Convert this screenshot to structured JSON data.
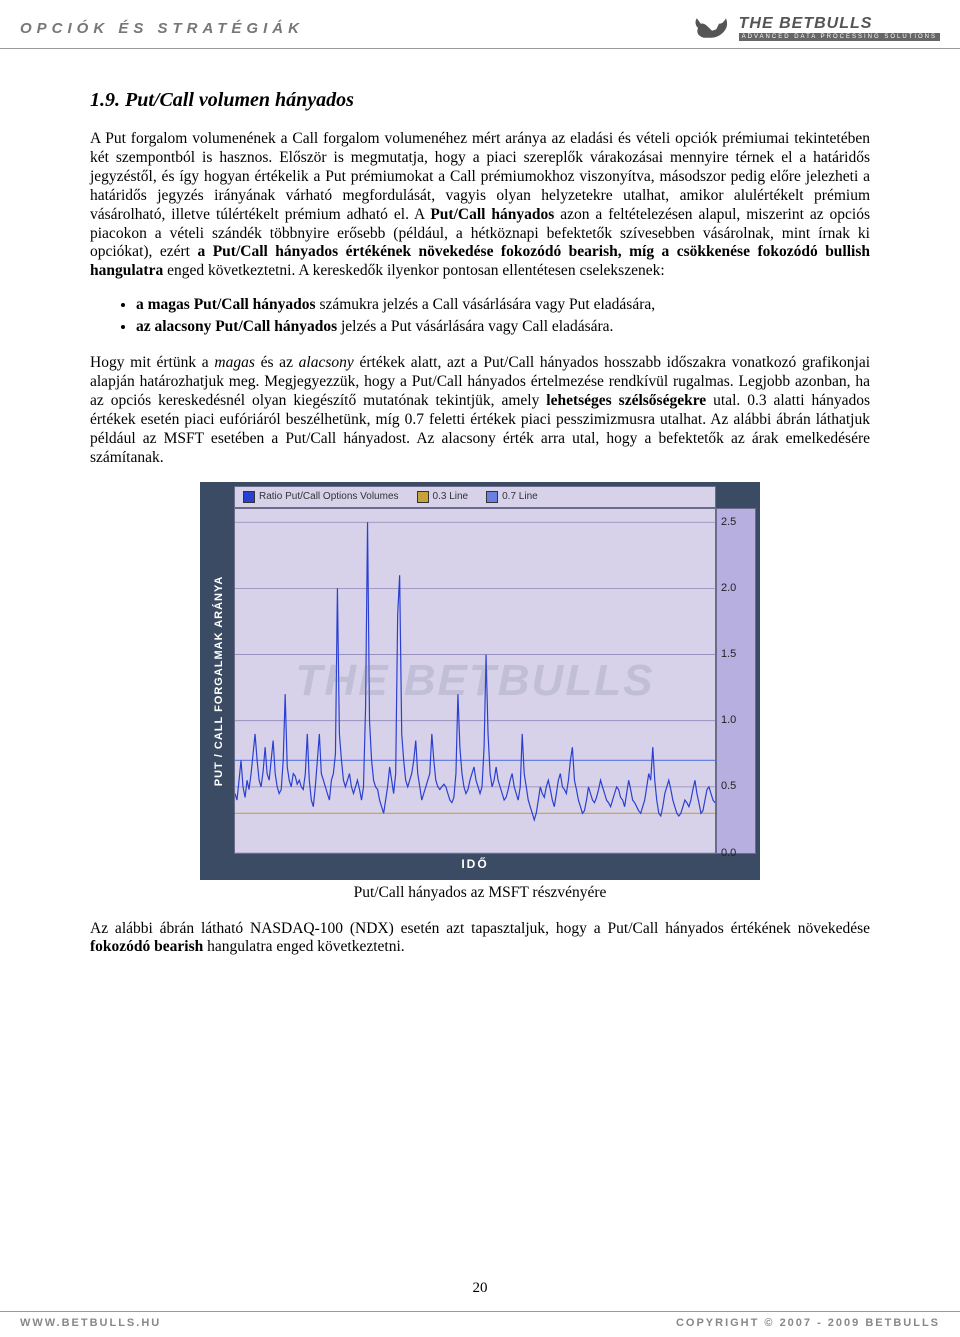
{
  "header": {
    "left_title": "OPCIÓK ÉS STRATÉGIÁK",
    "brand_main": "THE BETBULLS",
    "brand_sub": "ADVANCED DATA PROCESSING SOLUTIONS"
  },
  "section": {
    "title": "1.9. Put/Call volumen hányados",
    "para1": "A Put forgalom volumenének a Call forgalom volumenéhez mért aránya az eladási és vételi opciók prémiumai tekintetében két szempontból is hasznos. Először is megmutatja, hogy a piaci szereplők várakozásai mennyire térnek el a határidős jegyzéstől, és így hogyan értékelik a Put prémiumokat a Call prémiumokhoz viszonyítva, másodszor pedig előre jelezheti a határidős jegyzés irányának várható megfordulását, vagyis olyan helyzetekre utalhat, amikor alulértékelt prémium vásárolható, illetve túlértékelt prémium adható el. A ",
    "para1_bold1": "Put/Call hányados",
    "para1_cont": " azon a feltételezésen alapul, miszerint az opciós piacokon a vételi szándék többnyire erősebb (például, a hétköznapi befektetők szívesebben vásárolnak, mint írnak ki opciókat), ezért ",
    "para1_bold2": "a Put/Call hányados értékének növekedése fokozódó bearish, míg a csökkenése fokozódó bullish hangulatra",
    "para1_end": " enged következtetni. A kereskedők ilyenkor pontosan ellentétesen cselekszenek:",
    "bullet1_bold": "a magas Put/Call hányados",
    "bullet1_rest": " számukra jelzés a Call vásárlására vagy Put eladására,",
    "bullet2_bold": "az alacsony Put/Call hányados",
    "bullet2_rest": " jelzés a Put vásárlására vagy Call eladására.",
    "para2_start": " Hogy mit értünk a ",
    "para2_it1": "magas",
    "para2_mid1": " és az ",
    "para2_it2": "alacsony",
    "para2_mid2": " értékek alatt, azt a Put/Call hányados hosszabb időszakra vonatkozó grafikonjai alapján határozhatjuk meg. Megjegyezzük, hogy a Put/Call hányados értelmezése rendkívül rugalmas. Legjobb azonban, ha az opciós kereskedésnél olyan kiegészítő mutatónak tekintjük, amely ",
    "para2_bold": "lehetséges szélsőségekre",
    "para2_end": " utal. 0.3 alatti hányados értékek esetén piaci eufóriáról beszélhetünk, míg 0.7 feletti értékek piaci pesszimizmusra utalhat. Az alábbi ábrán láthatjuk például az MSFT esetében a Put/Call hányadost. Az alacsony érték arra utal, hogy a befektetők az árak emelkedésére számítanak.",
    "caption": "Put/Call hányados az MSFT részvényére",
    "para3_start": "Az alábbi ábrán látható NASDAQ-100 (NDX) esetén azt tapasztaljuk, hogy a Put/Call hányados értékének növekedése ",
    "para3_bold": "fokozódó bearish",
    "para3_end": " hangulatra enged következtetni."
  },
  "chart": {
    "ylabel": "PUT / CALL  FORGALMAK  ARÁNYA",
    "xlabel": "IDŐ",
    "legend1": "Ratio Put/Call Options Volumes",
    "legend2": "0.3 Line",
    "legend3": "0.7 Line",
    "legend1_color": "#2a3fd1",
    "legend2_color": "#c7a23a",
    "legend3_color": "#6a80e0",
    "bg_color": "#d7d2e9",
    "grid_color": "#8e88b8",
    "line_color": "#2a3fd1",
    "frame_color": "#3b4b63",
    "ymax": 2.6,
    "ymin": 0.0,
    "yticks": [
      "2.5",
      "2.0",
      "1.5",
      "1.0",
      "0.5",
      "0.0"
    ],
    "ytick_values": [
      2.5,
      2.0,
      1.5,
      1.0,
      0.5,
      0.0
    ],
    "line03": 0.3,
    "line07": 0.7,
    "watermark": "THE BETBULLS",
    "data": [
      0.45,
      0.4,
      0.55,
      0.7,
      0.5,
      0.42,
      0.55,
      0.48,
      0.6,
      0.75,
      0.9,
      0.7,
      0.55,
      0.5,
      0.62,
      0.8,
      0.6,
      0.55,
      0.7,
      0.85,
      0.6,
      0.5,
      0.45,
      0.48,
      0.7,
      1.2,
      0.65,
      0.55,
      0.5,
      0.6,
      0.58,
      0.52,
      0.55,
      0.5,
      0.48,
      0.6,
      0.9,
      0.55,
      0.4,
      0.35,
      0.5,
      0.7,
      0.9,
      0.6,
      0.55,
      0.5,
      0.45,
      0.4,
      0.55,
      0.6,
      0.75,
      2.0,
      0.9,
      0.7,
      0.55,
      0.5,
      0.55,
      0.6,
      0.5,
      0.45,
      0.5,
      0.55,
      0.48,
      0.4,
      0.5,
      1.1,
      2.5,
      1.0,
      0.7,
      0.55,
      0.5,
      0.48,
      0.4,
      0.35,
      0.3,
      0.4,
      0.5,
      0.65,
      0.55,
      0.45,
      0.6,
      1.8,
      2.1,
      0.9,
      0.7,
      0.55,
      0.5,
      0.55,
      0.6,
      0.7,
      0.85,
      0.6,
      0.5,
      0.4,
      0.45,
      0.5,
      0.55,
      0.6,
      0.9,
      0.7,
      0.55,
      0.5,
      0.48,
      0.5,
      0.52,
      0.5,
      0.45,
      0.4,
      0.38,
      0.42,
      0.6,
      1.2,
      0.8,
      0.6,
      0.5,
      0.45,
      0.48,
      0.55,
      0.6,
      0.65,
      0.55,
      0.5,
      0.45,
      0.5,
      0.8,
      1.5,
      0.9,
      0.6,
      0.5,
      0.55,
      0.65,
      0.55,
      0.5,
      0.45,
      0.4,
      0.42,
      0.48,
      0.55,
      0.6,
      0.5,
      0.45,
      0.4,
      0.5,
      0.9,
      0.6,
      0.5,
      0.4,
      0.35,
      0.3,
      0.25,
      0.3,
      0.4,
      0.5,
      0.45,
      0.42,
      0.5,
      0.55,
      0.48,
      0.4,
      0.35,
      0.45,
      0.55,
      0.6,
      0.5,
      0.48,
      0.45,
      0.55,
      0.7,
      0.8,
      0.55,
      0.48,
      0.4,
      0.35,
      0.3,
      0.32,
      0.4,
      0.5,
      0.45,
      0.4,
      0.38,
      0.42,
      0.48,
      0.55,
      0.5,
      0.45,
      0.4,
      0.38,
      0.35,
      0.4,
      0.45,
      0.5,
      0.48,
      0.42,
      0.4,
      0.35,
      0.45,
      0.55,
      0.48,
      0.4,
      0.38,
      0.35,
      0.32,
      0.3,
      0.35,
      0.4,
      0.5,
      0.6,
      0.55,
      0.8,
      0.55,
      0.4,
      0.3,
      0.28,
      0.35,
      0.45,
      0.5,
      0.55,
      0.48,
      0.4,
      0.35,
      0.3,
      0.28,
      0.3,
      0.35,
      0.4,
      0.38,
      0.35,
      0.4,
      0.48,
      0.55,
      0.45,
      0.38,
      0.3,
      0.32,
      0.4,
      0.48,
      0.5,
      0.45,
      0.4,
      0.38
    ]
  },
  "footer": {
    "left": "WWW.BETBULLS.HU",
    "right": "COPYRIGHT © 2007 - 2009 BETBULLS",
    "page_number": "20"
  }
}
